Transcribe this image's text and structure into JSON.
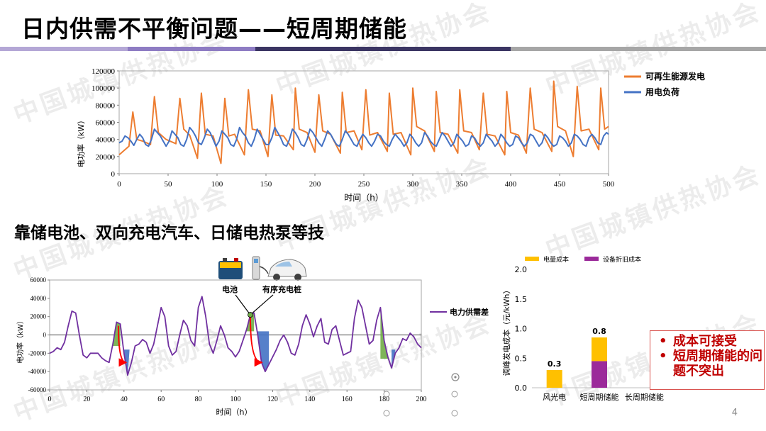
{
  "title": "日内供需不平衡问题——短周期储能",
  "subtitle": "靠储电池、双向充电汽车、日储电热泵等技",
  "page_number": "4",
  "watermark": "中国城镇供热协会",
  "colors": {
    "renewable": "#ed7d31",
    "load": "#4472c4",
    "gap": "#7030a0",
    "surplus_fill": "#70ad47",
    "deficit_fill": "#4472c4",
    "shift_arrow": "#ff0000",
    "energy_cost": "#ffc000",
    "equipment_cost": "#9b2a9a",
    "callout_text": "#c00000"
  },
  "top_chart": {
    "chart_data": {
      "type": "line",
      "xlabel": "时间（h）",
      "ylabel": "电功率（kW）",
      "xlim": [
        0,
        500
      ],
      "ylim": [
        0,
        120000
      ],
      "x_ticks": [
        "0",
        "50",
        "100",
        "150",
        "200",
        "250",
        "300",
        "350",
        "400",
        "450",
        "500"
      ],
      "y_ticks": [
        "0",
        "20000",
        "40000",
        "60000",
        "80000",
        "100000",
        "120000"
      ],
      "legend_position": "right",
      "series": [
        {
          "name": "可再生能源发电",
          "x": [
            0,
            10,
            14,
            18,
            24,
            32,
            36,
            40,
            48,
            58,
            62,
            66,
            72,
            80,
            84,
            88,
            96,
            104,
            108,
            112,
            118,
            128,
            132,
            136,
            144,
            152,
            156,
            160,
            168,
            178,
            180,
            184,
            192,
            200,
            204,
            208,
            216,
            226,
            228,
            232,
            240,
            248,
            252,
            256,
            264,
            274,
            276,
            280,
            288,
            298,
            300,
            304,
            312,
            322,
            324,
            328,
            336,
            346,
            348,
            352,
            360,
            368,
            372,
            376,
            384,
            394,
            396,
            400,
            408,
            416,
            420,
            424,
            432,
            442,
            444,
            448,
            456,
            464,
            468,
            472,
            480,
            490,
            492,
            496,
            500
          ],
          "values": [
            22000,
            32000,
            72000,
            40000,
            38000,
            34000,
            90000,
            48000,
            40000,
            35000,
            88000,
            52000,
            45000,
            18000,
            94000,
            46000,
            44000,
            12000,
            88000,
            44000,
            46000,
            22000,
            98000,
            52000,
            50000,
            20000,
            92000,
            45000,
            44000,
            28000,
            100000,
            52000,
            48000,
            25000,
            92000,
            50000,
            46000,
            24000,
            95000,
            48000,
            50000,
            28000,
            98000,
            45000,
            48000,
            26000,
            94000,
            46000,
            48000,
            22000,
            100000,
            55000,
            50000,
            26000,
            96000,
            48000,
            46000,
            24000,
            98000,
            50000,
            48000,
            28000,
            94000,
            46000,
            44000,
            22000,
            96000,
            48000,
            45000,
            24000,
            100000,
            52000,
            48000,
            26000,
            108000,
            55000,
            50000,
            20000,
            102000,
            50000,
            52000,
            28000,
            100000,
            52000,
            55000
          ]
        },
        {
          "name": "用电负荷",
          "x": [
            0,
            3,
            6,
            9,
            12,
            15,
            18,
            21,
            24,
            27,
            30,
            33,
            36,
            39,
            42,
            45,
            48,
            51,
            54,
            57,
            60,
            63,
            66,
            69,
            72,
            75,
            78,
            81,
            84,
            87,
            90,
            93,
            96,
            99,
            102,
            105,
            108,
            111,
            114,
            117,
            120,
            123,
            126,
            129,
            132,
            135,
            138,
            141,
            144,
            147,
            150,
            153,
            156,
            159,
            162,
            165,
            168,
            171,
            174,
            177,
            180,
            183,
            186,
            189,
            192,
            195,
            198,
            201,
            204,
            207,
            210,
            213,
            216,
            219,
            222,
            225,
            228,
            231,
            234,
            237,
            240,
            243,
            246,
            249,
            252,
            255,
            258,
            261,
            264,
            267,
            270,
            273,
            276,
            279,
            282,
            285,
            288,
            291,
            294,
            297,
            300,
            303,
            306,
            309,
            312,
            315,
            318,
            321,
            324,
            327,
            330,
            333,
            336,
            339,
            342,
            345,
            348,
            351,
            354,
            357,
            360,
            363,
            366,
            369,
            372,
            375,
            378,
            381,
            384,
            387,
            390,
            393,
            396,
            399,
            402,
            405,
            408,
            411,
            414,
            417,
            420,
            423,
            426,
            429,
            432,
            435,
            438,
            441,
            444,
            447,
            450,
            453,
            456,
            459,
            462,
            465,
            468,
            471,
            474,
            477,
            480,
            483,
            486,
            489,
            492,
            495,
            498,
            500
          ],
          "values": [
            36000,
            38000,
            44000,
            42000,
            38000,
            33000,
            40000,
            46000,
            42000,
            34000,
            32000,
            40000,
            52000,
            48000,
            44000,
            38000,
            32000,
            38000,
            50000,
            46000,
            42000,
            34000,
            32000,
            40000,
            54000,
            50000,
            44000,
            36000,
            34000,
            42000,
            52000,
            48000,
            40000,
            32000,
            38000,
            50000,
            46000,
            42000,
            34000,
            32000,
            40000,
            54000,
            48000,
            44000,
            36000,
            32000,
            40000,
            52000,
            46000,
            40000,
            34000,
            34000,
            42000,
            54000,
            48000,
            42000,
            34000,
            32000,
            40000,
            52000,
            48000,
            42000,
            34000,
            32000,
            40000,
            52000,
            48000,
            42000,
            36000,
            32000,
            40000,
            50000,
            46000,
            40000,
            34000,
            32000,
            40000,
            50000,
            46000,
            40000,
            34000,
            32000,
            40000,
            46000,
            42000,
            36000,
            32000,
            38000,
            46000,
            44000,
            38000,
            34000,
            32000,
            40000,
            46000,
            42000,
            38000,
            32000,
            36000,
            46000,
            42000,
            36000,
            32000,
            36000,
            48000,
            44000,
            38000,
            34000,
            32000,
            40000,
            48000,
            44000,
            38000,
            32000,
            36000,
            46000,
            42000,
            38000,
            32000,
            34000,
            44000,
            42000,
            36000,
            32000,
            36000,
            46000,
            42000,
            38000,
            32000,
            36000,
            46000,
            42000,
            36000,
            32000,
            34000,
            44000,
            42000,
            36000,
            32000,
            36000,
            46000,
            44000,
            38000,
            32000,
            36000,
            46000,
            42000,
            36000,
            32000,
            34000,
            44000,
            42000,
            38000,
            32000,
            36000,
            46000,
            44000,
            40000,
            34000,
            32000,
            42000,
            46000,
            42000,
            36000,
            34000,
            44000,
            48000,
            46000
          ]
        }
      ]
    }
  },
  "bottom_chart": {
    "chart_data": {
      "type": "line",
      "xlabel": "时间（h）",
      "ylabel": "电功率（kW）",
      "xlim": [
        0,
        200
      ],
      "ylim": [
        -60000,
        60000
      ],
      "x_ticks": [
        "0",
        "20",
        "40",
        "60",
        "80",
        "100",
        "120",
        "140",
        "160",
        "180",
        "200"
      ],
      "y_ticks": [
        "-60000",
        "-40000",
        "-20000",
        "0",
        "20000",
        "40000",
        "60000"
      ],
      "legend_position": "right",
      "series": [
        {
          "name": "电力供需差",
          "x": [
            0,
            2,
            4,
            6,
            8,
            10,
            12,
            14,
            16,
            18,
            20,
            22,
            24,
            26,
            28,
            30,
            32,
            34,
            36,
            38,
            40,
            42,
            44,
            46,
            48,
            50,
            52,
            54,
            56,
            58,
            60,
            62,
            64,
            66,
            68,
            70,
            72,
            74,
            76,
            78,
            80,
            82,
            84,
            86,
            88,
            90,
            92,
            94,
            96,
            98,
            100,
            102,
            104,
            106,
            108,
            110,
            112,
            114,
            116,
            118,
            120,
            122,
            124,
            126,
            128,
            130,
            132,
            134,
            136,
            138,
            140,
            142,
            144,
            146,
            148,
            150,
            152,
            154,
            156,
            158,
            160,
            162,
            164,
            166,
            168,
            170,
            172,
            174,
            176,
            178,
            180,
            182,
            184,
            186,
            188,
            190,
            192,
            194,
            196,
            198,
            200
          ],
          "values": [
            -20000,
            -18000,
            -14000,
            -16000,
            -8000,
            10000,
            26000,
            24000,
            0,
            -22000,
            -25000,
            -20000,
            -20000,
            -20000,
            -25000,
            -28000,
            -30000,
            -10000,
            14000,
            12000,
            -20000,
            -44000,
            -30000,
            -12000,
            -10000,
            -5000,
            -8000,
            -20000,
            -10000,
            10000,
            30000,
            20000,
            -12000,
            -22000,
            -18000,
            0,
            16000,
            10000,
            -6000,
            -12000,
            30000,
            42000,
            20000,
            -10000,
            -20000,
            -6000,
            10000,
            0,
            -14000,
            -18000,
            -24000,
            -18000,
            -6000,
            6000,
            22000,
            24000,
            0,
            -30000,
            -40000,
            -32000,
            -24000,
            -16000,
            -6000,
            0,
            -8000,
            -20000,
            -22000,
            -10000,
            10000,
            22000,
            12000,
            -2000,
            10000,
            18000,
            -8000,
            -10000,
            6000,
            10000,
            -6000,
            -22000,
            -20000,
            -18000,
            18000,
            38000,
            30000,
            10000,
            -10000,
            -6000,
            16000,
            30000,
            -6000,
            -24000,
            -36000,
            -20000,
            -14000,
            -4000,
            -6000,
            2000,
            -2000,
            -10000,
            -14000
          ]
        }
      ],
      "annotations": [
        "电池",
        "有序充电桩"
      ]
    }
  },
  "bar_chart": {
    "chart_data": {
      "type": "bar",
      "categories": [
        "风光电",
        "短周期储能",
        "长周期储能"
      ],
      "ylabel": "调峰发电成本（元/kWh）",
      "ylim": [
        0,
        2.0
      ],
      "y_ticks": [
        "0.0",
        "0.5",
        "1.0",
        "1.5",
        "2.0"
      ],
      "legend_position": "top",
      "series": [
        {
          "name": "电量成本",
          "values": [
            0.3,
            0.4,
            0
          ]
        },
        {
          "name": "设备折旧成本",
          "values": [
            0,
            0.45,
            0
          ]
        }
      ],
      "data_labels": [
        "0.3",
        "0.8",
        ""
      ]
    }
  },
  "callout": {
    "items": [
      "成本可接受",
      "短周期储能的问题不突出"
    ]
  }
}
